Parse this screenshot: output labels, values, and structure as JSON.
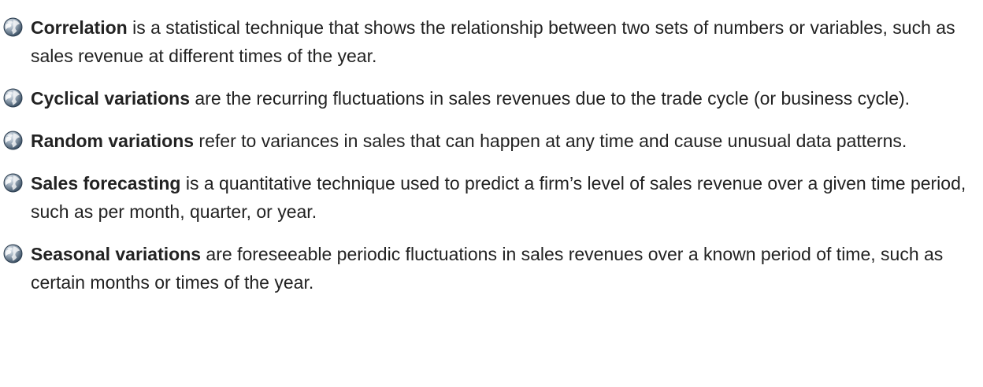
{
  "glossary": {
    "items": [
      {
        "term": "Correlation",
        "definition": " is a statistical technique that shows the relationship between two sets of numbers or variables, such as sales revenue at different times of the year."
      },
      {
        "term": "Cyclical variations",
        "definition": " are the recurring fluctuations in sales revenues due to the trade cycle (or business cycle)."
      },
      {
        "term": "Random variations",
        "definition": " refer to variances in sales that can happen at any time and cause unusual data patterns."
      },
      {
        "term": "Sales forecasting",
        "definition": " is a quantitative technique used to predict a firm’s level of sales revenue over a given time period, such as per month, quarter, or year."
      },
      {
        "term": "Seasonal variations",
        "definition": " are foreseeable periodic fluctuations in sales revenues over a known period of time, such as certain months or times of the year."
      }
    ],
    "bullet_icon": "globe-icon",
    "colors": {
      "text": "#222222",
      "icon_dark": "#34495e",
      "icon_light": "#9aa9b8"
    }
  }
}
